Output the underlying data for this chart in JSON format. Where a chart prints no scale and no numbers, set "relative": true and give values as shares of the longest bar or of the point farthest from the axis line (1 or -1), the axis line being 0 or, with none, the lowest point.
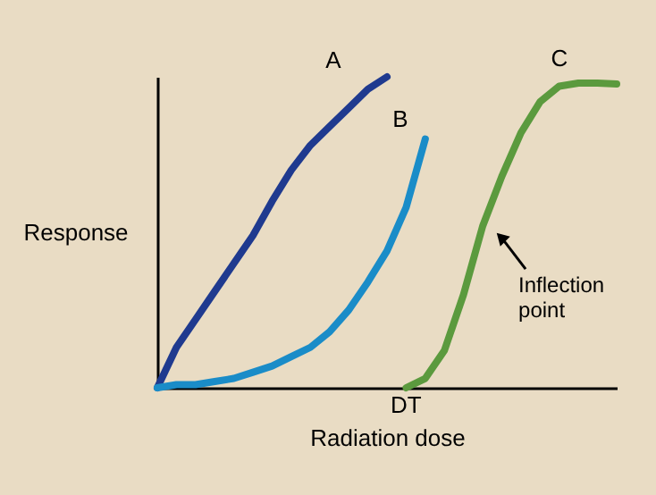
{
  "chart_data": {
    "type": "line",
    "relative": true,
    "xlabel": "Radiation dose",
    "ylabel": "Response",
    "categories": [
      null,
      null,
      null,
      null,
      null,
      null,
      null,
      null,
      null,
      null,
      null,
      null,
      null,
      null,
      null,
      null,
      null,
      null,
      null,
      null,
      null,
      null,
      null,
      null,
      null
    ],
    "series": [
      {
        "name": "A",
        "color": "#1f3a8f",
        "values": [
          0,
          0.13,
          0.22,
          0.31,
          0.4,
          0.49,
          0.6,
          0.7,
          0.78,
          0.84,
          0.9,
          0.96,
          1.0,
          null,
          null,
          null,
          null,
          null,
          null,
          null,
          null,
          null,
          null,
          null,
          null
        ]
      },
      {
        "name": "B",
        "color": "#1a8cc8",
        "values": [
          0,
          0.01,
          0.01,
          0.02,
          0.03,
          0.05,
          0.07,
          0.1,
          0.13,
          0.18,
          0.25,
          0.34,
          0.44,
          0.58,
          0.8,
          null,
          null,
          null,
          null,
          null,
          null,
          null,
          null,
          null,
          null
        ]
      },
      {
        "name": "C",
        "color": "#5b9a3e",
        "values": [
          null,
          null,
          null,
          null,
          null,
          null,
          null,
          null,
          null,
          null,
          null,
          null,
          null,
          0,
          0.03,
          0.12,
          0.3,
          0.52,
          0.68,
          0.82,
          0.92,
          0.97,
          0.98,
          0.98,
          0.977
        ]
      }
    ],
    "annotations": [
      "DT",
      "Inflection point"
    ],
    "legend": false,
    "grid": false,
    "marker": "none",
    "line_style": "solid"
  }
}
